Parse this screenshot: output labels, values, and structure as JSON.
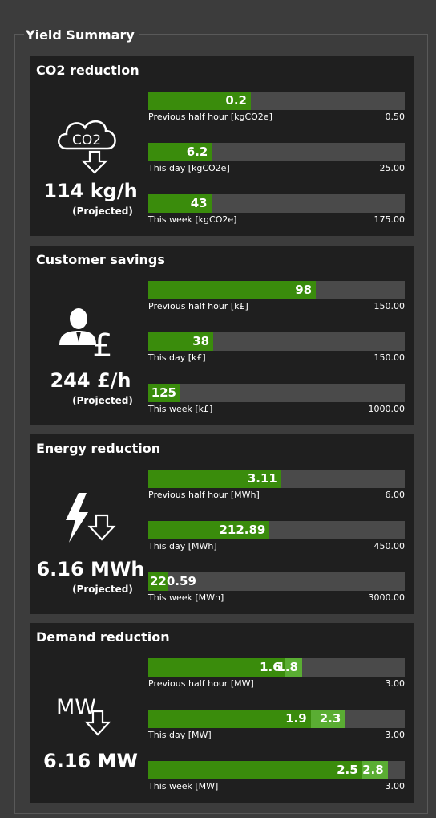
{
  "title": "Yield Summary",
  "panels": [
    {
      "title": "CO2 reduction",
      "icon_text": "CO2",
      "metric": "114 kg/h",
      "note": "(Projected)",
      "bars": [
        {
          "values": [
            0.2
          ],
          "label": "Previous half hour [kgCO2e]",
          "max": {
            "value": 0.5,
            "label": "0.50"
          }
        },
        {
          "values": [
            6.2
          ],
          "label": "This day [kgCO2e]",
          "max": {
            "value": 25,
            "label": "25.00"
          }
        },
        {
          "values": [
            43
          ],
          "label": "This week [kgCO2e]",
          "max": {
            "value": 175,
            "label": "175.00"
          }
        }
      ]
    },
    {
      "title": "Customer savings",
      "metric": "244 £/h",
      "note": "(Projected)",
      "bars": [
        {
          "values": [
            98
          ],
          "label": "Previous half hour [k£]",
          "max": {
            "value": 150,
            "label": "150.00"
          }
        },
        {
          "values": [
            38
          ],
          "label": "This day [k£]",
          "max": {
            "value": 150,
            "label": "150.00"
          }
        },
        {
          "values": [
            125
          ],
          "label": "This week [k£]",
          "max": {
            "value": 1000,
            "label": "1000.00"
          }
        }
      ]
    },
    {
      "title": "Energy reduction",
      "metric": "6.16 MWh",
      "note": "(Projected)",
      "bars": [
        {
          "values": [
            3.11
          ],
          "label": "Previous half hour [MWh]",
          "max": {
            "value": 6,
            "label": "6.00"
          }
        },
        {
          "values": [
            212.89
          ],
          "label": "This day [MWh]",
          "max": {
            "value": 450,
            "label": "450.00"
          }
        },
        {
          "values": [
            220.59
          ],
          "label": "This week [MWh]",
          "max": {
            "value": 3000,
            "label": "3000.00"
          }
        }
      ]
    },
    {
      "title": "Demand reduction",
      "icon_text": "MW",
      "metric": "6.16 MW",
      "bars": [
        {
          "values": [
            1.6,
            1.8
          ],
          "label": "Previous half hour [MW]",
          "max": {
            "value": 3,
            "label": "3.00"
          }
        },
        {
          "values": [
            1.9,
            2.3
          ],
          "label": "This day [MW]",
          "max": {
            "value": 3,
            "label": "3.00"
          }
        },
        {
          "values": [
            2.5,
            2.8
          ],
          "label": "This week [MW]",
          "max": {
            "value": 3,
            "label": "3.00"
          }
        }
      ]
    }
  ]
}
